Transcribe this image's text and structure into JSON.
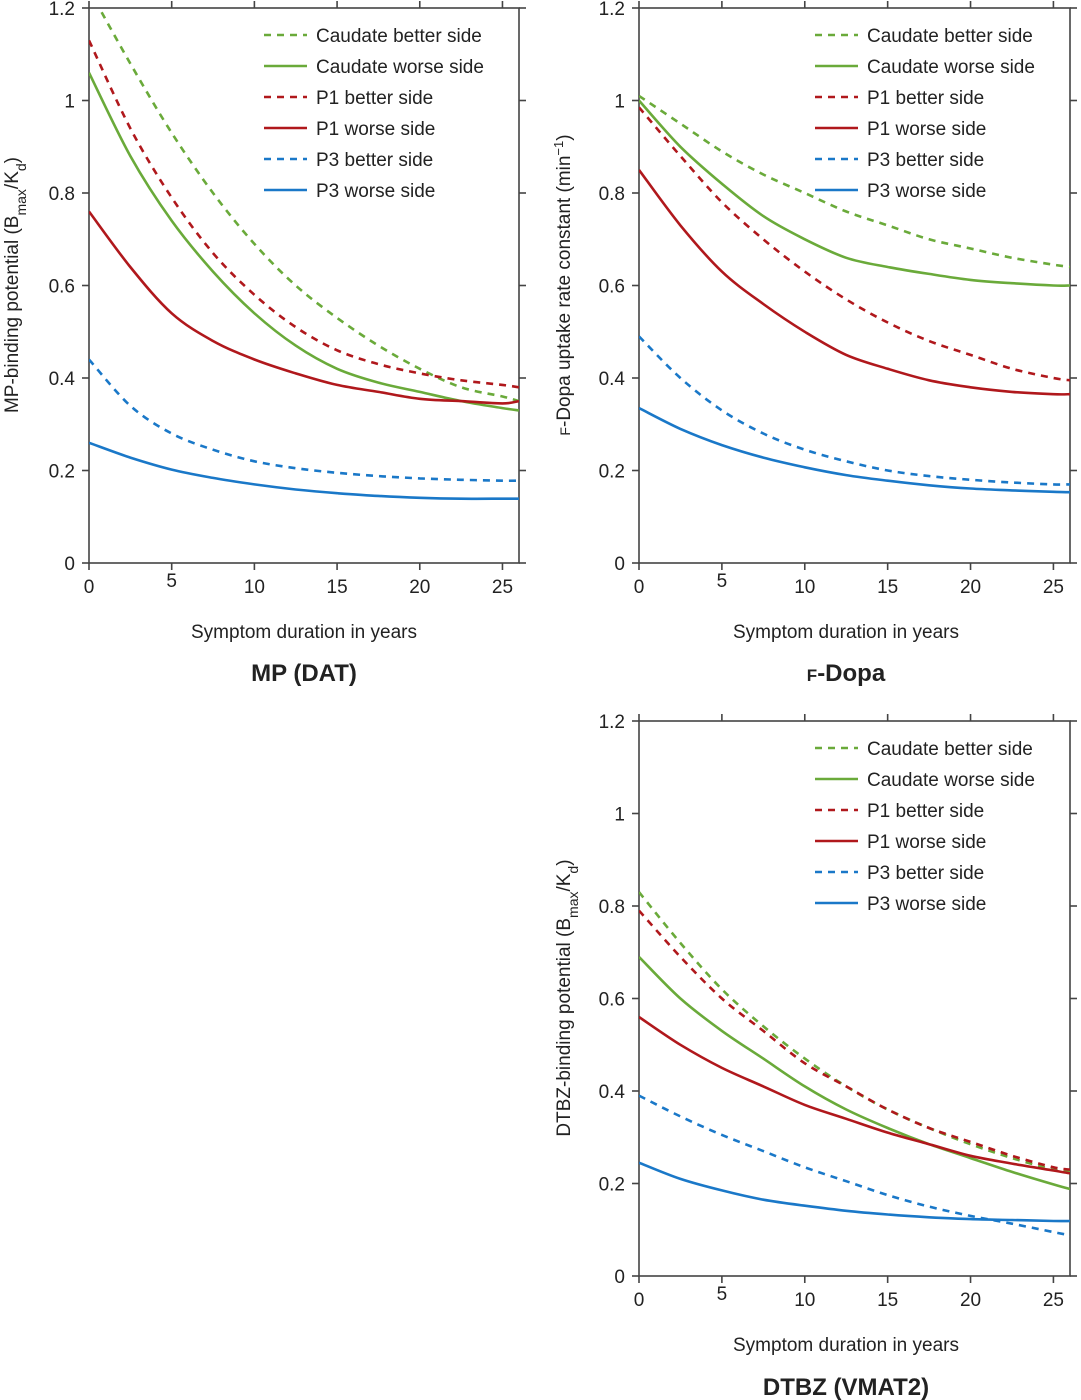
{
  "figure": {
    "panels": [
      "MP (DAT)",
      "F-Dopa",
      "DTBZ (VMAT2)"
    ]
  },
  "chart_data": [
    {
      "type": "line",
      "title": "MP (DAT)",
      "xlabel": "Symptom duration in years",
      "ylabel": "MP-binding potential (Bmax/Kd)",
      "ylabel_parts": {
        "main": "MP-binding potential (B",
        "sub1": "max",
        "mid": "/K",
        "sub2": "d",
        "end": ")"
      },
      "xlim": [
        0,
        26
      ],
      "ylim": [
        0,
        1.2
      ],
      "xticks": [
        0,
        5,
        10,
        15,
        20,
        25
      ],
      "xtick_labels": [
        "0",
        "5",
        "10",
        "15",
        "20",
        "25"
      ],
      "yticks": [
        0,
        0.2,
        0.4,
        0.6,
        0.8,
        1,
        1.2
      ],
      "ytick_labels": [
        "0",
        "0.2",
        "0.4",
        "0.6",
        "0.8",
        "1",
        "1.2"
      ],
      "grid": false,
      "legend_position": "top-right",
      "x": [
        0,
        2.5,
        5,
        7.5,
        10,
        12.5,
        15,
        17.5,
        20,
        22.5,
        25,
        26
      ],
      "series": [
        {
          "name": "Caudate better side",
          "color": "#6aaa3a",
          "dash": true,
          "values": [
            1.24,
            1.08,
            0.93,
            0.8,
            0.69,
            0.6,
            0.53,
            0.47,
            0.42,
            0.38,
            0.36,
            0.35
          ]
        },
        {
          "name": "Caudate worse side",
          "color": "#6aaa3a",
          "dash": false,
          "values": [
            1.06,
            0.88,
            0.74,
            0.63,
            0.54,
            0.47,
            0.42,
            0.39,
            0.37,
            0.35,
            0.335,
            0.33
          ]
        },
        {
          "name": "P1 better side",
          "color": "#b0181c",
          "dash": true,
          "values": [
            1.13,
            0.94,
            0.79,
            0.67,
            0.58,
            0.51,
            0.46,
            0.43,
            0.41,
            0.395,
            0.385,
            0.38
          ]
        },
        {
          "name": "P1 worse side",
          "color": "#b0181c",
          "dash": false,
          "values": [
            0.76,
            0.64,
            0.54,
            0.48,
            0.44,
            0.41,
            0.385,
            0.37,
            0.355,
            0.35,
            0.345,
            0.35
          ]
        },
        {
          "name": "P3 better side",
          "color": "#1a78c8",
          "dash": true,
          "values": [
            0.44,
            0.34,
            0.28,
            0.245,
            0.22,
            0.205,
            0.195,
            0.188,
            0.183,
            0.18,
            0.178,
            0.178
          ]
        },
        {
          "name": "P3 worse side",
          "color": "#1a78c8",
          "dash": false,
          "values": [
            0.26,
            0.228,
            0.202,
            0.184,
            0.17,
            0.159,
            0.151,
            0.145,
            0.141,
            0.139,
            0.139,
            0.139
          ]
        }
      ]
    },
    {
      "type": "line",
      "title": "F-Dopa",
      "title_parts": {
        "small": "F",
        "rest": "-Dopa"
      },
      "xlabel": "Symptom duration in years",
      "ylabel": "F-Dopa uptake rate constant (min-1)",
      "ylabel_parts": {
        "small": "F",
        "main": "-Dopa uptake rate constant (min",
        "sup": "−1",
        "end": ")"
      },
      "xlim": [
        0,
        26
      ],
      "ylim": [
        0,
        1.2
      ],
      "xticks": [
        0,
        5,
        10,
        15,
        20,
        25
      ],
      "xtick_labels": [
        "0",
        "5",
        "10",
        "15",
        "20",
        "25"
      ],
      "yticks": [
        0,
        0.2,
        0.4,
        0.6,
        0.8,
        1,
        1.2
      ],
      "ytick_labels": [
        "0",
        "0.2",
        "0.4",
        "0.6",
        "0.8",
        "1",
        "1.2"
      ],
      "grid": false,
      "legend_position": "top-right",
      "x": [
        0,
        2.5,
        5,
        7.5,
        10,
        12.5,
        15,
        17.5,
        20,
        22.5,
        25,
        26
      ],
      "series": [
        {
          "name": "Caudate better side",
          "color": "#6aaa3a",
          "dash": true,
          "values": [
            1.01,
            0.95,
            0.89,
            0.84,
            0.8,
            0.76,
            0.73,
            0.7,
            0.68,
            0.66,
            0.645,
            0.64
          ]
        },
        {
          "name": "Caudate worse side",
          "color": "#6aaa3a",
          "dash": false,
          "values": [
            1.0,
            0.9,
            0.82,
            0.75,
            0.7,
            0.66,
            0.64,
            0.625,
            0.612,
            0.605,
            0.6,
            0.6
          ]
        },
        {
          "name": "P1 better side",
          "color": "#b0181c",
          "dash": true,
          "values": [
            0.985,
            0.88,
            0.78,
            0.7,
            0.63,
            0.57,
            0.52,
            0.48,
            0.45,
            0.42,
            0.4,
            0.395
          ]
        },
        {
          "name": "P1 worse side",
          "color": "#b0181c",
          "dash": false,
          "values": [
            0.85,
            0.73,
            0.63,
            0.56,
            0.5,
            0.45,
            0.42,
            0.395,
            0.38,
            0.37,
            0.365,
            0.365
          ]
        },
        {
          "name": "P3 better side",
          "color": "#1a78c8",
          "dash": true,
          "values": [
            0.49,
            0.4,
            0.33,
            0.28,
            0.245,
            0.22,
            0.2,
            0.188,
            0.18,
            0.174,
            0.17,
            0.17
          ]
        },
        {
          "name": "P3 worse side",
          "color": "#1a78c8",
          "dash": false,
          "values": [
            0.335,
            0.29,
            0.255,
            0.228,
            0.207,
            0.19,
            0.178,
            0.168,
            0.161,
            0.157,
            0.154,
            0.153
          ]
        }
      ]
    },
    {
      "type": "line",
      "title": "DTBZ (VMAT2)",
      "xlabel": "Symptom duration in years",
      "ylabel": "DTBZ-binding potential (Bmax/Kd)",
      "ylabel_parts": {
        "main": "DTBZ-binding potential (B",
        "sub1": "max",
        "mid": "/K",
        "sub2": "d",
        "end": ")"
      },
      "xlim": [
        0,
        26
      ],
      "ylim": [
        0,
        1.2
      ],
      "xticks": [
        0,
        5,
        10,
        15,
        20,
        25
      ],
      "xtick_labels": [
        "0",
        "5",
        "10",
        "15",
        "20",
        "25"
      ],
      "yticks": [
        0,
        0.2,
        0.4,
        0.6,
        0.8,
        1,
        1.2
      ],
      "ytick_labels": [
        "0",
        "0.2",
        "0.4",
        "0.6",
        "0.8",
        "1",
        "1.2"
      ],
      "grid": false,
      "legend_position": "top-right",
      "x": [
        0,
        2.5,
        5,
        7.5,
        10,
        12.5,
        15,
        17.5,
        20,
        22.5,
        25,
        26
      ],
      "series": [
        {
          "name": "Caudate better side",
          "color": "#6aaa3a",
          "dash": true,
          "values": [
            0.83,
            0.72,
            0.62,
            0.54,
            0.47,
            0.41,
            0.36,
            0.32,
            0.285,
            0.255,
            0.23,
            0.225
          ]
        },
        {
          "name": "Caudate worse side",
          "color": "#6aaa3a",
          "dash": false,
          "values": [
            0.69,
            0.6,
            0.53,
            0.47,
            0.41,
            0.36,
            0.32,
            0.285,
            0.255,
            0.225,
            0.198,
            0.188
          ]
        },
        {
          "name": "P1 better side",
          "color": "#b0181c",
          "dash": true,
          "values": [
            0.79,
            0.69,
            0.6,
            0.53,
            0.46,
            0.41,
            0.36,
            0.32,
            0.29,
            0.26,
            0.235,
            0.23
          ]
        },
        {
          "name": "P1 worse side",
          "color": "#b0181c",
          "dash": false,
          "values": [
            0.56,
            0.5,
            0.45,
            0.41,
            0.37,
            0.34,
            0.31,
            0.285,
            0.26,
            0.243,
            0.228,
            0.222
          ]
        },
        {
          "name": "P3 better side",
          "color": "#1a78c8",
          "dash": true,
          "values": [
            0.39,
            0.345,
            0.305,
            0.27,
            0.235,
            0.205,
            0.175,
            0.15,
            0.13,
            0.113,
            0.095,
            0.088
          ]
        },
        {
          "name": "P3 worse side",
          "color": "#1a78c8",
          "dash": false,
          "values": [
            0.245,
            0.21,
            0.185,
            0.165,
            0.152,
            0.141,
            0.133,
            0.127,
            0.123,
            0.121,
            0.119,
            0.119
          ]
        }
      ]
    }
  ]
}
